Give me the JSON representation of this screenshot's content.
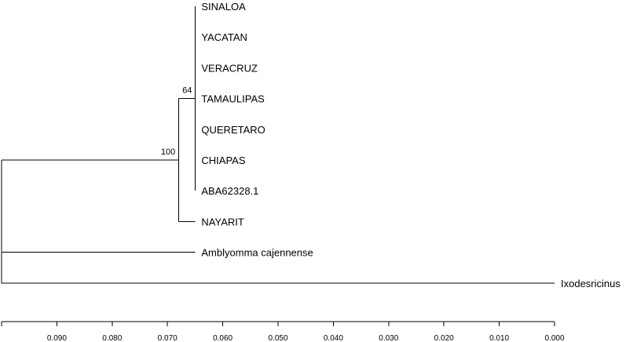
{
  "tree": {
    "leaves": [
      {
        "id": "sinaloa",
        "label": "SINALOA"
      },
      {
        "id": "yacatan",
        "label": "YACATAN"
      },
      {
        "id": "veracruz",
        "label": "VERACRUZ"
      },
      {
        "id": "tamaulipas",
        "label": "TAMAULIPAS"
      },
      {
        "id": "queretaro",
        "label": "QUERETARO"
      },
      {
        "id": "chiapas",
        "label": "CHIAPAS"
      },
      {
        "id": "aba62328",
        "label": "ABA62328.1"
      },
      {
        "id": "nayarit",
        "label": "NAYARIT"
      },
      {
        "id": "amblyomma",
        "label": "Amblyomma cajennense"
      },
      {
        "id": "ixodes",
        "label": "Ixodesricinus"
      }
    ],
    "clades": [
      {
        "id": "inner",
        "support": "64",
        "height": 0.065,
        "members": [
          "sinaloa",
          "yacatan",
          "veracruz",
          "tamaulipas",
          "queretaro",
          "chiapas",
          "aba62328"
        ]
      },
      {
        "id": "ingroup",
        "support": "100",
        "height": 0.068,
        "members": [
          "inner",
          "nayarit"
        ]
      },
      {
        "id": "root",
        "support": "",
        "height": 0.1,
        "members": [
          "ingroup",
          "amblyomma",
          "ixodes"
        ]
      }
    ],
    "leaf_height": 0.065,
    "outgroup_heights": {
      "amblyomma": 0.065,
      "ixodes": 0.0
    }
  },
  "scale": {
    "min": 0.0,
    "max": 0.1,
    "ticks": [
      0.1,
      0.09,
      0.08,
      0.07,
      0.06,
      0.05,
      0.04,
      0.03,
      0.02,
      0.01,
      0.0
    ],
    "tick_labels": [
      "0.090",
      "0.080",
      "0.070",
      "0.060",
      "0.050",
      "0.040",
      "0.030",
      "0.020",
      "0.010",
      "0.000"
    ]
  }
}
